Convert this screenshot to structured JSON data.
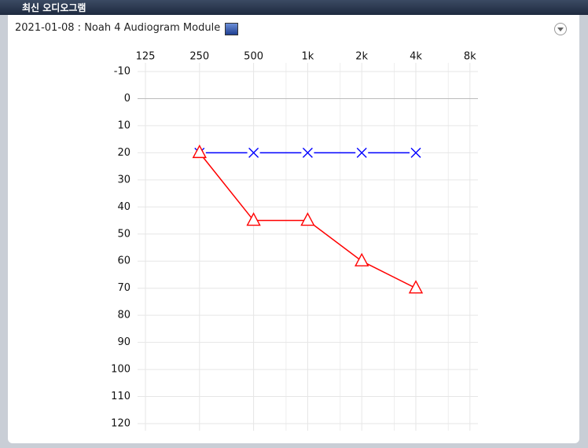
{
  "header": {
    "title": "최신 오디오그램"
  },
  "panel": {
    "title": "2021-01-08 : Noah 4 Audiogram Module"
  },
  "chart_data": {
    "type": "line",
    "categories": [
      "125",
      "250",
      "500",
      "1k",
      "2k",
      "4k",
      "8k"
    ],
    "series": [
      {
        "color": "#0000ff",
        "marker": "x",
        "values": [
          null,
          20,
          20,
          20,
          20,
          20,
          null
        ]
      },
      {
        "color": "#ff0000",
        "marker": "triangle",
        "values": [
          null,
          20,
          45,
          45,
          60,
          70,
          null
        ]
      }
    ],
    "ylim": [
      -10,
      120
    ],
    "yticks": [
      -10,
      0,
      10,
      20,
      30,
      40,
      50,
      60,
      70,
      80,
      90,
      100,
      110,
      120
    ],
    "y_inverted": true,
    "grid": true
  }
}
